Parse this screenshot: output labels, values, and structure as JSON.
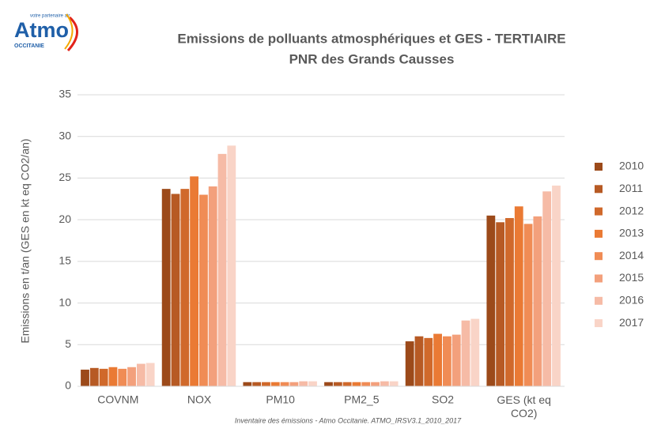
{
  "logo": {
    "name": "Atmo",
    "tagline": "votre partenaire air",
    "region": "OCCITANIE"
  },
  "chart_data": {
    "type": "bar",
    "title": "Emissions de polluants atmosphériques et GES - TERTIAIRE",
    "subtitle": "PNR des Grands Causses",
    "y_label": "Emissions en t/an (GES en kt eq CO2/an)",
    "source": "Inventaire des émissions - Atmo Occitanie. ATMO_IRSV3.1_2010_2017",
    "categories": [
      "COVNM",
      "NOX",
      "PM10",
      "PM2_5",
      "SO2",
      "GES (kt eq CO2)"
    ],
    "series": [
      {
        "name": "2010",
        "color": "#9c4a1a",
        "values": [
          2.0,
          23.7,
          0.5,
          0.5,
          5.4,
          20.5
        ]
      },
      {
        "name": "2011",
        "color": "#b75a24",
        "values": [
          2.2,
          23.1,
          0.5,
          0.5,
          6.0,
          19.7
        ]
      },
      {
        "name": "2012",
        "color": "#d0692b",
        "values": [
          2.1,
          23.7,
          0.5,
          0.5,
          5.8,
          20.2
        ]
      },
      {
        "name": "2013",
        "color": "#ea7a34",
        "values": [
          2.3,
          25.2,
          0.5,
          0.5,
          6.3,
          21.6
        ]
      },
      {
        "name": "2014",
        "color": "#f08c55",
        "values": [
          2.1,
          23.0,
          0.5,
          0.5,
          6.0,
          19.5
        ]
      },
      {
        "name": "2015",
        "color": "#f3a07c",
        "values": [
          2.3,
          24.0,
          0.5,
          0.5,
          6.2,
          20.4
        ]
      },
      {
        "name": "2016",
        "color": "#f6bba6",
        "values": [
          2.7,
          27.9,
          0.6,
          0.6,
          7.9,
          23.4
        ]
      },
      {
        "name": "2017",
        "color": "#f9d4c7",
        "values": [
          2.8,
          28.9,
          0.6,
          0.6,
          8.1,
          24.1
        ]
      }
    ],
    "ylim": [
      0,
      35
    ],
    "yticks": [
      0,
      5,
      10,
      15,
      20,
      25,
      30,
      35
    ],
    "grid": true,
    "legend": "right"
  }
}
